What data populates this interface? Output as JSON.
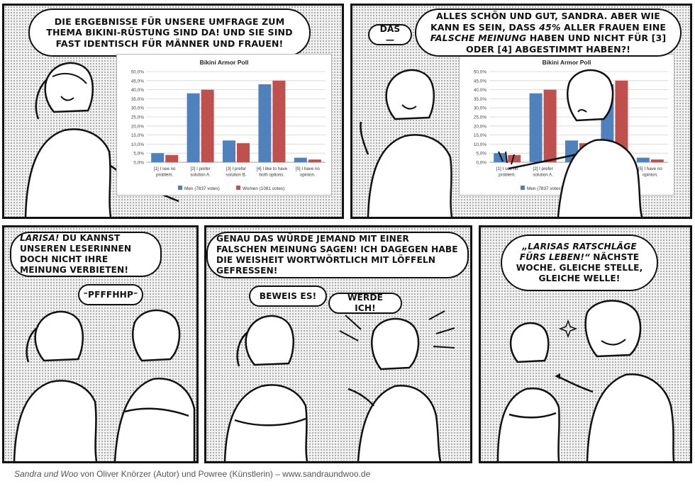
{
  "panels": [
    {
      "id": 1,
      "bubbles": [
        {
          "parts": [
            {
              "t": "Die Ergebnisse für unsere Umfrage zum Thema Bikini-Rüstung sind da! Und sie sind fast identisch für Männer und Frauen!"
            }
          ]
        }
      ]
    },
    {
      "id": 2,
      "bubbles": [
        {
          "parts": [
            {
              "t": "Das—"
            }
          ]
        },
        {
          "parts": [
            {
              "t": "Alles schön und gut, Sandra. Aber wie kann es sein, dass "
            },
            {
              "t": "45%",
              "em": true
            },
            {
              "t": " aller Frauen eine "
            },
            {
              "t": "falsche Meinung",
              "em": true
            },
            {
              "t": " haben und nicht für [3] oder [4] abgestimmt haben?!"
            }
          ]
        }
      ]
    },
    {
      "id": 3,
      "bubbles": [
        {
          "parts": [
            {
              "t": "Larisa!",
              "em": true
            },
            {
              "t": " Du kannst unseren Leserinnen doch nicht ihre Meinung verbieten!"
            }
          ]
        },
        {
          "parts": [
            {
              "t": "⁼Pfffhhp⁼"
            }
          ]
        }
      ]
    },
    {
      "id": 4,
      "bubbles": [
        {
          "parts": [
            {
              "t": "Genau das würde jemand mit einer falschen Meinung sagen! Ich dagegen habe die Weisheit wortwörtlich mit Löffeln gefressen!"
            }
          ]
        },
        {
          "parts": [
            {
              "t": "Beweis es!"
            }
          ]
        },
        {
          "parts": [
            {
              "t": "Werde ich!"
            }
          ]
        }
      ]
    },
    {
      "id": 5,
      "bubbles": [
        {
          "parts": [
            {
              "t": "„Larisas Ratschläge fürs Leben!“",
              "em": true
            },
            {
              "t": " Nächste Woche. Gleiche Stelle, gleiche Welle!"
            }
          ]
        }
      ]
    }
  ],
  "chart_data": {
    "type": "bar",
    "title": "Bikini Armor Poll",
    "categories": [
      "[1] I see no problem.",
      "[2] I prefer solution A.",
      "[3] I prefer solution B.",
      "[4] I like to have both options.",
      "[5] I have no opinion."
    ],
    "category_lines": [
      [
        "[1] I see no",
        "problem."
      ],
      [
        "[2] I prefer",
        "solution A."
      ],
      [
        "[3] I prefer",
        "solution B."
      ],
      [
        "[4] I like to have",
        "both options."
      ],
      [
        "[5] I have no",
        "opinion."
      ]
    ],
    "series": [
      {
        "name": "Men (7837 votes)",
        "color": "#4f81bd",
        "values": [
          5.0,
          38.0,
          12.0,
          43.0,
          2.5
        ]
      },
      {
        "name": "Women (1081 votes)",
        "color": "#c0504d",
        "values": [
          4.0,
          40.0,
          10.5,
          45.0,
          1.5
        ]
      }
    ],
    "ylim": [
      0,
      50
    ],
    "yticks": [
      "0,0%",
      "5,0%",
      "10,0%",
      "15,0%",
      "20,0%",
      "25,0%",
      "30,0%",
      "35,0%",
      "40,0%",
      "45,0%",
      "50,0%"
    ],
    "grid": true,
    "legend": "bottom"
  },
  "credit": {
    "title": "Sandra und Woo",
    "text": " von Oliver Knörzer (Autor) und Powree (Künstlerin) – www.sandraundwoo.de"
  }
}
